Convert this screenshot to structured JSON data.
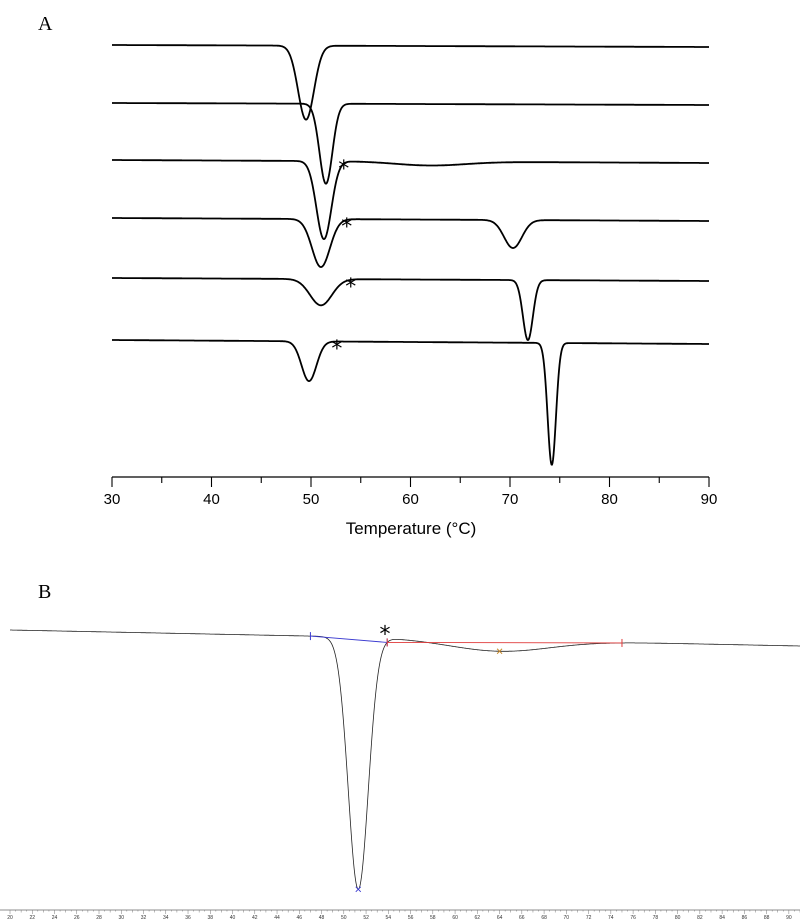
{
  "chart_data": [
    {
      "type": "line",
      "panel_label": "A",
      "xlabel": "Temperature  (°C)",
      "xlim": [
        30,
        90
      ],
      "xticks": [
        "30",
        "40",
        "50",
        "60",
        "70",
        "80",
        "90"
      ],
      "yaxis_visible": false,
      "grid": false,
      "legend": "none",
      "annotation": "*",
      "line_color": "#000000",
      "series": [
        {
          "peaks": [
            {
              "x": 49.5,
              "depth": 1.0,
              "width": 0.8
            }
          ],
          "stars": []
        },
        {
          "peaks": [
            {
              "x": 51.5,
              "depth": 1.0,
              "width": 0.65
            }
          ],
          "stars": []
        },
        {
          "peaks": [
            {
              "x": 51.3,
              "depth": 1.0,
              "width": 0.75
            },
            {
              "x": 62.0,
              "depth": 0.05,
              "width": 3.5
            }
          ],
          "stars": [
            53.3
          ]
        },
        {
          "peaks": [
            {
              "x": 51.0,
              "depth": 0.6,
              "width": 0.9
            },
            {
              "x": 70.3,
              "depth": 0.35,
              "width": 0.9
            }
          ],
          "stars": [
            53.6
          ]
        },
        {
          "peaks": [
            {
              "x": 51.0,
              "depth": 0.35,
              "width": 1.1
            },
            {
              "x": 71.8,
              "depth": 0.8,
              "width": 0.5
            }
          ],
          "stars": [
            54.0
          ]
        },
        {
          "peaks": [
            {
              "x": 49.8,
              "depth": 0.75,
              "width": 0.75
            },
            {
              "x": 74.2,
              "depth": 2.3,
              "width": 0.42
            }
          ],
          "stars": [
            52.6
          ]
        }
      ]
    },
    {
      "type": "line",
      "panel_label": "B",
      "xlim": [
        20,
        91
      ],
      "xticks": [
        "20",
        "22",
        "24",
        "26",
        "28",
        "30",
        "32",
        "34",
        "36",
        "38",
        "40",
        "42",
        "44",
        "46",
        "48",
        "50",
        "52",
        "54",
        "56",
        "58",
        "60",
        "62",
        "64",
        "66",
        "68",
        "70",
        "72",
        "74",
        "76",
        "78",
        "80",
        "82",
        "84",
        "86",
        "88",
        "90"
      ],
      "annotation": "*",
      "colors": {
        "trace": "#222222",
        "baseline_1": "#3b3bd0",
        "baseline_2": "#e03a3a",
        "marker_peak_1": "#3b3bd0",
        "marker_peak_2": "#c88a2a"
      },
      "peaks": [
        {
          "x": 51.3,
          "depth": 1.0,
          "width": 0.9
        },
        {
          "x": 64.0,
          "depth": 0.045,
          "width": 4.5
        }
      ],
      "integration_limits": [
        [
          47.0,
          53.9
        ],
        [
          53.9,
          75.0
        ]
      ],
      "star_x": 53.7
    }
  ]
}
